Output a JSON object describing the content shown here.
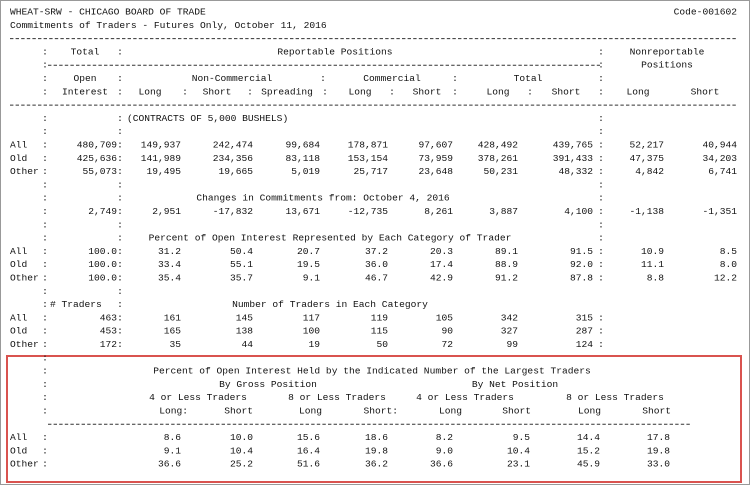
{
  "header": {
    "title": "WHEAT-SRW - CHICAGO BOARD OF TRADE",
    "code": "Code-001602",
    "subtitle": "Commitments of Traders - Futures Only, October 11, 2016"
  },
  "columns": {
    "total": "Total",
    "reportable": "Reportable Positions",
    "nonreportable": "Nonreportable",
    "positions": "Positions",
    "open": "Open",
    "interest": "Interest",
    "non_commercial": "Non-Commercial",
    "commercial": "Commercial",
    "total_group": "Total",
    "subheads": [
      "Long",
      "Short",
      "Spreading",
      "Long",
      "Short",
      "Long",
      "Short",
      "Long",
      "Short"
    ]
  },
  "units": "(CONTRACTS OF 5,000 BUSHELS)",
  "positions": [
    {
      "label": "All",
      "values": [
        "480,709",
        "149,937",
        "242,474",
        "99,684",
        "178,871",
        "97,607",
        "428,492",
        "439,765",
        "52,217",
        "40,944"
      ]
    },
    {
      "label": "Old",
      "values": [
        "425,636",
        "141,989",
        "234,356",
        "83,118",
        "153,154",
        "73,959",
        "378,261",
        "391,433",
        "47,375",
        "34,203"
      ]
    },
    {
      "label": "Other",
      "values": [
        "55,073",
        "19,495",
        "19,665",
        "5,019",
        "25,717",
        "23,648",
        "50,231",
        "48,332",
        "4,842",
        "6,741"
      ]
    }
  ],
  "changes": {
    "title": "Changes in Commitments from: October 4, 2016",
    "values": [
      "2,749",
      "2,951",
      "-17,832",
      "13,671",
      "-12,735",
      "8,261",
      "3,887",
      "4,100",
      "-1,138",
      "-1,351"
    ]
  },
  "percent": {
    "title": "Percent of Open Interest Represented by Each Category of Trader",
    "rows": [
      {
        "label": "All",
        "values": [
          "100.0",
          "31.2",
          "50.4",
          "20.7",
          "37.2",
          "20.3",
          "89.1",
          "91.5",
          "10.9",
          "8.5"
        ]
      },
      {
        "label": "Old",
        "values": [
          "100.0",
          "33.4",
          "55.1",
          "19.5",
          "36.0",
          "17.4",
          "88.9",
          "92.0",
          "11.1",
          "8.0"
        ]
      },
      {
        "label": "Other",
        "values": [
          "100.0",
          "35.4",
          "35.7",
          "9.1",
          "46.7",
          "42.9",
          "91.2",
          "87.8",
          "8.8",
          "12.2"
        ]
      }
    ]
  },
  "traders": {
    "label": "# Traders",
    "title": "Number of Traders in Each Category",
    "rows": [
      {
        "label": "All",
        "values": [
          "463",
          "161",
          "145",
          "117",
          "119",
          "105",
          "342",
          "315"
        ]
      },
      {
        "label": "Old",
        "values": [
          "453",
          "165",
          "138",
          "100",
          "115",
          "90",
          "327",
          "287"
        ]
      },
      {
        "label": "Other",
        "values": [
          "172",
          "35",
          "44",
          "19",
          "50",
          "72",
          "99",
          "124"
        ]
      }
    ]
  },
  "concentration": {
    "title": "Percent of Open Interest Held by the Indicated Number of the Largest Traders",
    "gross": "By Gross Position",
    "net": "By Net Position",
    "groups": [
      "4 or Less Traders",
      "8 or Less Traders",
      "4 or Less Traders",
      "8 or Less Traders"
    ],
    "subheads": [
      "Long:",
      "Short",
      "Long",
      "Short:",
      "Long",
      "Short",
      "Long",
      "Short"
    ],
    "rows": [
      {
        "label": "All",
        "values": [
          "8.6",
          "10.0",
          "15.6",
          "18.6",
          "8.2",
          "9.5",
          "14.4",
          "17.8"
        ]
      },
      {
        "label": "Old",
        "values": [
          "9.1",
          "10.4",
          "16.4",
          "19.8",
          "9.0",
          "10.4",
          "15.2",
          "19.8"
        ]
      },
      {
        "label": "Other",
        "values": [
          "36.6",
          "25.2",
          "51.6",
          "36.2",
          "36.6",
          "23.1",
          "45.9",
          "33.0"
        ]
      }
    ]
  }
}
